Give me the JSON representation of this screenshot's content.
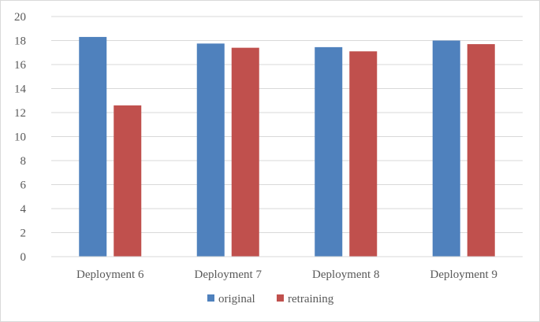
{
  "chart_data": {
    "type": "bar",
    "title": "",
    "xlabel": "",
    "ylabel": "",
    "categories": [
      "Deployment 6",
      "Deployment 7",
      "Deployment 8",
      "Deployment 9"
    ],
    "series": [
      {
        "name": "original",
        "color": "#4f81bd",
        "values": [
          18.3,
          17.75,
          17.45,
          18.0
        ]
      },
      {
        "name": "retraining",
        "color": "#c0504d",
        "values": [
          12.6,
          17.4,
          17.1,
          17.7
        ]
      }
    ],
    "ylim": [
      0,
      20
    ],
    "yticks": [
      "0",
      "2",
      "4",
      "6",
      "8",
      "10",
      "12",
      "14",
      "16",
      "18",
      "20"
    ],
    "grid": true,
    "legend_position": "bottom"
  }
}
